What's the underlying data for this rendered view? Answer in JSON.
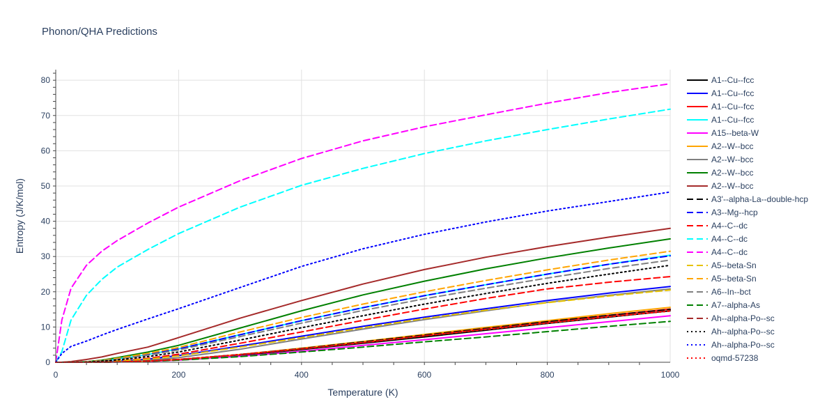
{
  "chart_data": {
    "type": "line",
    "title": "Phonon/QHA Predictions",
    "xlabel": "Temperature (K)",
    "ylabel": "Entropy (J/K/mol)",
    "xlim": [
      0,
      1000
    ],
    "ylim": [
      0,
      83
    ],
    "x_ticks": [
      0,
      200,
      400,
      600,
      800,
      1000
    ],
    "y_ticks": [
      0,
      10,
      20,
      30,
      40,
      50,
      60,
      70,
      80
    ],
    "grid": true,
    "legend_position": "right",
    "x": [
      0,
      10,
      25,
      50,
      75,
      100,
      150,
      200,
      300,
      400,
      500,
      600,
      700,
      800,
      900,
      1000
    ],
    "series": [
      {
        "name": "A1--Cu--fcc",
        "color": "#000000",
        "dash": "solid",
        "values": [
          0,
          0,
          0,
          0,
          0.03,
          0.1,
          0.3,
          0.7,
          2.0,
          3.6,
          5.4,
          7.2,
          9.1,
          11.0,
          12.8,
          14.6
        ]
      },
      {
        "name": "A1--Cu--fcc",
        "color": "#0000ff",
        "dash": "solid",
        "values": [
          0,
          0,
          0,
          0.02,
          0.1,
          0.3,
          0.9,
          1.9,
          4.6,
          7.4,
          10.2,
          12.8,
          15.2,
          17.5,
          19.6,
          21.5
        ]
      },
      {
        "name": "A1--Cu--fcc",
        "color": "#ff0000",
        "dash": "solid",
        "values": [
          0,
          0,
          0,
          0,
          0.03,
          0.1,
          0.35,
          0.8,
          2.2,
          3.9,
          5.8,
          7.7,
          9.6,
          11.5,
          13.3,
          15.1
        ]
      },
      {
        "name": "A1--Cu--fcc",
        "color": "#00ffff",
        "dash": "solid",
        "values": [
          0,
          0,
          0.02,
          0.1,
          0.4,
          0.9,
          2.2,
          3.8,
          7.8,
          11.8,
          15.5,
          18.9,
          22.0,
          25.0,
          27.8,
          30.4
        ]
      },
      {
        "name": "A15--beta-W",
        "color": "#ff00ff",
        "dash": "solid",
        "values": [
          0,
          0,
          0,
          0,
          0.02,
          0.08,
          0.25,
          0.6,
          1.7,
          3.1,
          4.8,
          6.4,
          8.1,
          9.8,
          11.5,
          13.2
        ]
      },
      {
        "name": "A2--W--bcc",
        "color": "#ffa500",
        "dash": "solid",
        "values": [
          0,
          0,
          0,
          0,
          0.03,
          0.1,
          0.35,
          0.8,
          2.2,
          4.0,
          5.9,
          7.9,
          9.9,
          11.8,
          13.8,
          15.6
        ]
      },
      {
        "name": "A2--W--bcc",
        "color": "#808080",
        "dash": "solid",
        "values": [
          0,
          0,
          0,
          0.01,
          0.06,
          0.2,
          0.6,
          1.3,
          3.7,
          6.6,
          9.4,
          12.1,
          14.6,
          17.0,
          19.0,
          20.8
        ]
      },
      {
        "name": "A2--W--bcc",
        "color": "#008000",
        "dash": "solid",
        "values": [
          0,
          0,
          0.02,
          0.15,
          0.6,
          1.3,
          2.9,
          4.8,
          9.7,
          14.6,
          19.1,
          23.0,
          26.5,
          29.6,
          32.4,
          35.0
        ]
      },
      {
        "name": "A2--W--bcc",
        "color": "#a52a2a",
        "dash": "solid",
        "values": [
          0,
          0.02,
          0.2,
          0.8,
          1.5,
          2.5,
          4.3,
          7.0,
          12.5,
          17.5,
          22.2,
          26.3,
          29.8,
          32.8,
          35.5,
          38.0
        ]
      },
      {
        "name": "A3'--alpha-La--double-hcp",
        "color": "#000000",
        "dash": "dash",
        "values": [
          0,
          0,
          0,
          0,
          0.03,
          0.1,
          0.35,
          0.8,
          2.2,
          3.9,
          5.8,
          7.7,
          9.6,
          11.5,
          13.3,
          15.0
        ]
      },
      {
        "name": "A3--Mg--hcp",
        "color": "#0000ff",
        "dash": "dash",
        "values": [
          0,
          0,
          0.02,
          0.1,
          0.4,
          0.9,
          2.2,
          3.8,
          7.8,
          11.8,
          15.5,
          18.9,
          22.0,
          25.0,
          27.8,
          30.2
        ]
      },
      {
        "name": "A4--C--dc",
        "color": "#ff0000",
        "dash": "dash",
        "values": [
          0,
          0,
          0,
          0.03,
          0.15,
          0.4,
          1.1,
          2.3,
          5.4,
          8.6,
          11.9,
          15.1,
          18.1,
          20.8,
          22.7,
          24.3
        ]
      },
      {
        "name": "A4--C--dc",
        "color": "#00ffff",
        "dash": "dash",
        "values": [
          0,
          3.0,
          12.0,
          19.0,
          23.5,
          27.0,
          32.0,
          36.5,
          44.0,
          50.2,
          55.0,
          59.2,
          62.8,
          66.0,
          69.0,
          71.8
        ]
      },
      {
        "name": "A4--C--dc",
        "color": "#ff00ff",
        "dash": "dash",
        "values": [
          0,
          12.0,
          21.0,
          27.5,
          31.5,
          34.5,
          39.5,
          44.0,
          51.5,
          57.8,
          62.8,
          66.8,
          70.2,
          73.5,
          76.5,
          79.0
        ]
      },
      {
        "name": "A5--beta-Sn",
        "color": "#e6c200",
        "dash": "dash",
        "values": [
          0,
          0,
          0,
          0.02,
          0.1,
          0.35,
          0.9,
          1.8,
          4.3,
          7.0,
          9.8,
          12.4,
          14.8,
          16.9,
          18.8,
          20.5
        ]
      },
      {
        "name": "A5--beta-Sn",
        "color": "#ffa500",
        "dash": "dash",
        "values": [
          0,
          0,
          0.03,
          0.15,
          0.5,
          1.1,
          2.5,
          4.2,
          8.6,
          12.7,
          16.5,
          20.0,
          23.2,
          26.2,
          29.0,
          31.5
        ]
      },
      {
        "name": "A6--In--bct",
        "color": "#808080",
        "dash": "dash",
        "values": [
          0,
          0,
          0.02,
          0.1,
          0.4,
          0.85,
          2.0,
          3.5,
          7.3,
          11.1,
          14.7,
          18.0,
          21.0,
          23.9,
          26.6,
          29.0
        ]
      },
      {
        "name": "A7--alpha-As",
        "color": "#008000",
        "dash": "dash",
        "values": [
          0,
          0,
          0,
          0,
          0.02,
          0.08,
          0.25,
          0.6,
          1.6,
          2.9,
          4.3,
          5.8,
          7.2,
          8.7,
          10.2,
          11.6
        ]
      },
      {
        "name": "Ah--alpha-Po--sc",
        "color": "#a52a2a",
        "dash": "dash",
        "values": [
          0,
          0,
          0,
          0,
          0.03,
          0.1,
          0.35,
          0.8,
          2.2,
          3.8,
          5.6,
          7.5,
          9.4,
          11.2,
          13.0,
          14.7
        ]
      },
      {
        "name": "Ah--alpha-Po--sc",
        "color": "#000000",
        "dash": "dot",
        "values": [
          0,
          0,
          0.02,
          0.1,
          0.3,
          0.65,
          1.6,
          2.9,
          6.3,
          9.8,
          13.2,
          16.5,
          19.5,
          22.4,
          25.0,
          27.5
        ]
      },
      {
        "name": "Ah--alpha-Po--sc",
        "color": "#0000ff",
        "dash": "dot",
        "values": [
          0,
          2.5,
          4.5,
          6.0,
          7.7,
          9.3,
          12.3,
          15.2,
          21.2,
          27.2,
          32.2,
          36.3,
          39.8,
          42.9,
          45.6,
          48.3
        ]
      },
      {
        "name": "oqmd-57238",
        "color": "#ff0000",
        "dash": "dot",
        "values": [
          0,
          0,
          0,
          0,
          0.03,
          0.1,
          0.35,
          0.8,
          2.2,
          3.8,
          5.6,
          7.5,
          9.3,
          11.1,
          12.9,
          14.5
        ]
      }
    ]
  }
}
